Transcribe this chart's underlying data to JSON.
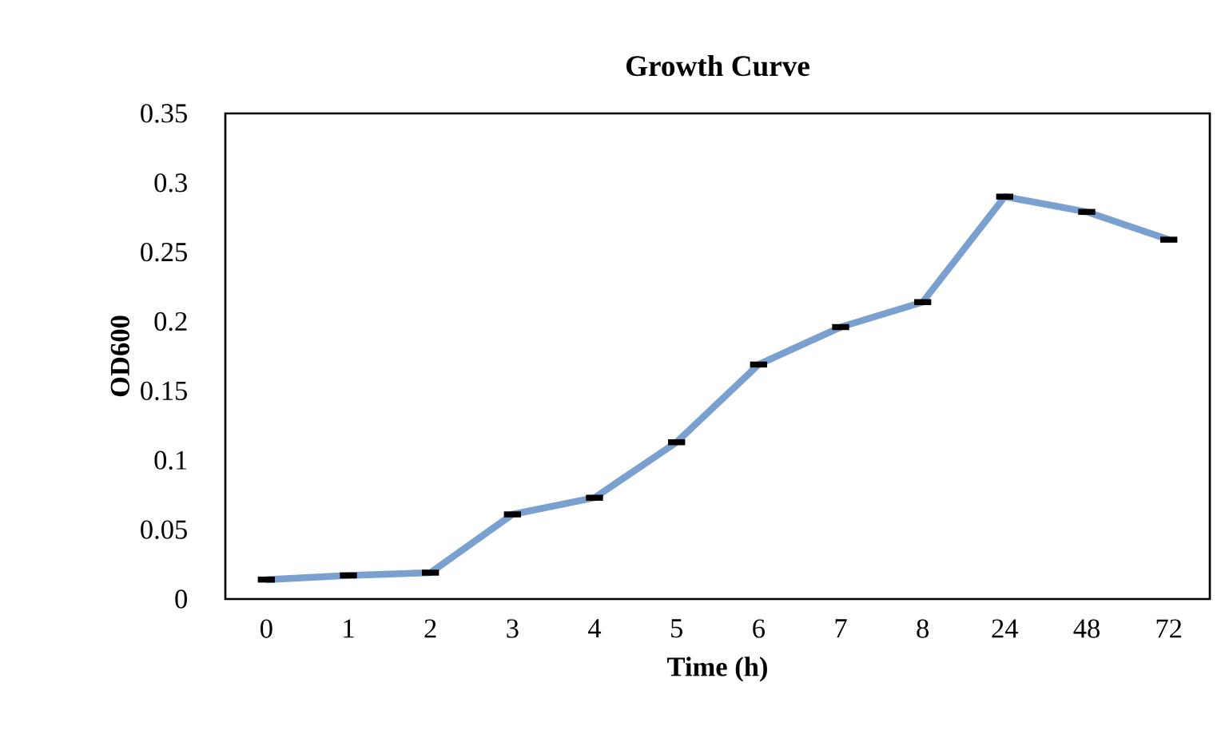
{
  "chart_data": {
    "type": "line",
    "title": "Growth Curve",
    "xlabel": "Time (h)",
    "ylabel": "OD600",
    "categories": [
      "0",
      "1",
      "2",
      "3",
      "4",
      "5",
      "6",
      "7",
      "8",
      "24",
      "48",
      "72"
    ],
    "series": [
      {
        "color": "#7aa0cf",
        "values": [
          0.014,
          0.017,
          0.019,
          0.061,
          0.073,
          0.113,
          0.169,
          0.196,
          0.214,
          0.29,
          0.279,
          0.259
        ],
        "errors": [
          0.001,
          0.001,
          0.001,
          0.001,
          0.001,
          0.001,
          0.001,
          0.001,
          0.001,
          0.001,
          0.001,
          0.001
        ]
      }
    ],
    "ylim": [
      0,
      0.35
    ],
    "yticks": [
      0,
      0.05,
      0.1,
      0.15,
      0.2,
      0.25,
      0.3,
      0.35
    ],
    "grid": false,
    "marker": "none",
    "line_style": "solid"
  }
}
